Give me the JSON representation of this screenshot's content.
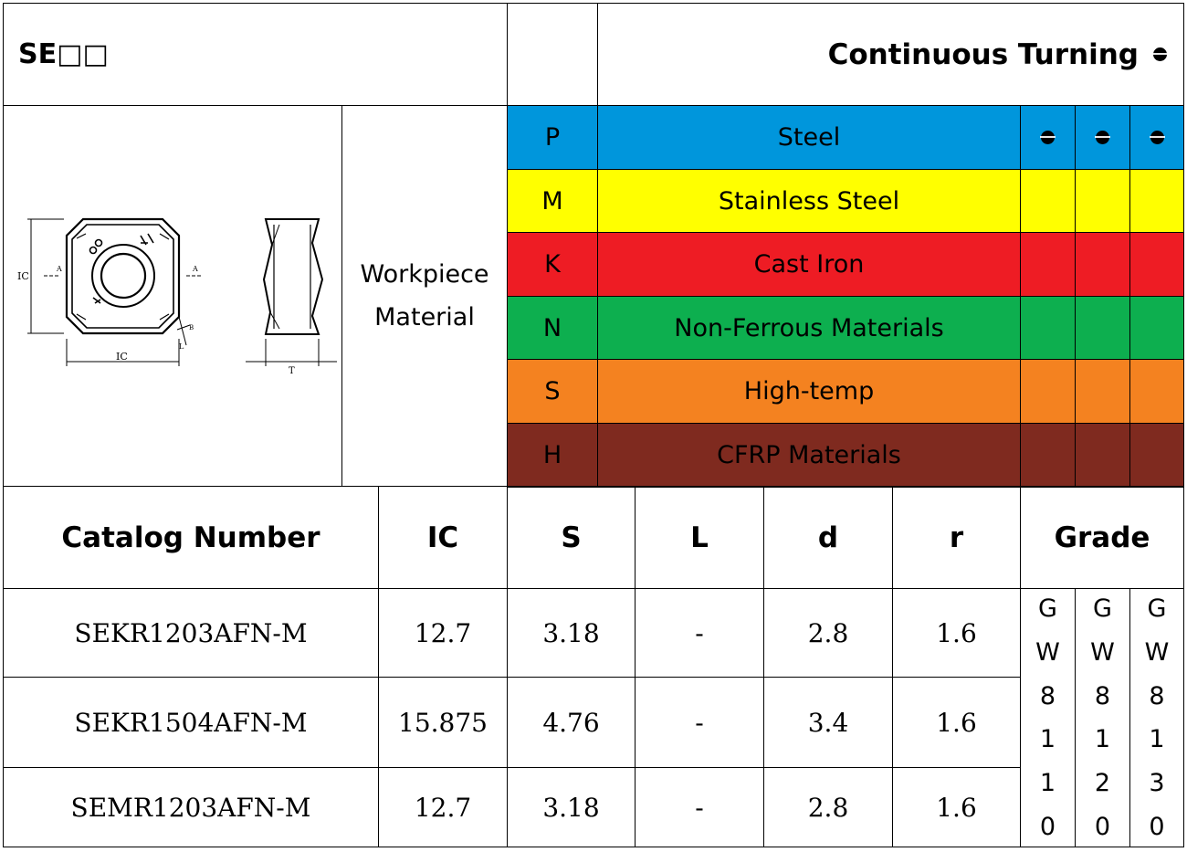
{
  "header": {
    "series": "SE□□",
    "operation": "Continuous Turning"
  },
  "workpiece_label": "Workpiece\nMaterial",
  "diagram": {
    "label_ic_left": "IC",
    "label_ic_bottom": "IC",
    "label_a_left": "A",
    "label_a_right": "A",
    "label_t": "T",
    "label_l": "L",
    "label_b": "B"
  },
  "materials": [
    {
      "code": "P",
      "name": "Steel",
      "color": "#0096dc",
      "marks": [
        true,
        true,
        true
      ]
    },
    {
      "code": "M",
      "name": "Stainless Steel",
      "color": "#ffff00",
      "marks": [
        false,
        false,
        false
      ]
    },
    {
      "code": "K",
      "name": "Cast Iron",
      "color": "#ee1c24",
      "marks": [
        false,
        false,
        false
      ]
    },
    {
      "code": "N",
      "name": "Non-Ferrous Materials",
      "color": "#0daf4f",
      "marks": [
        false,
        false,
        false
      ]
    },
    {
      "code": "S",
      "name": "High-temp",
      "color": "#f48220",
      "marks": [
        false,
        false,
        false
      ]
    },
    {
      "code": "H",
      "name": "CFRP Materials",
      "color": "#7f2a1f",
      "marks": [
        false,
        false,
        false
      ]
    }
  ],
  "table": {
    "headers": [
      "Catalog Number",
      "IC",
      "S",
      "L",
      "d",
      "r",
      "Grade"
    ],
    "grades": [
      "GW8110",
      "GW8120",
      "GW8130"
    ],
    "rows": [
      [
        "SEKR1203AFN-M",
        "12.7",
        "3.18",
        "-",
        "2.8",
        "1.6"
      ],
      [
        "SEKR1504AFN-M",
        "15.875",
        "4.76",
        "-",
        "3.4",
        "1.6"
      ],
      [
        "SEMR1203AFN-M",
        "12.7",
        "3.18",
        "-",
        "2.8",
        "1.6"
      ]
    ]
  }
}
